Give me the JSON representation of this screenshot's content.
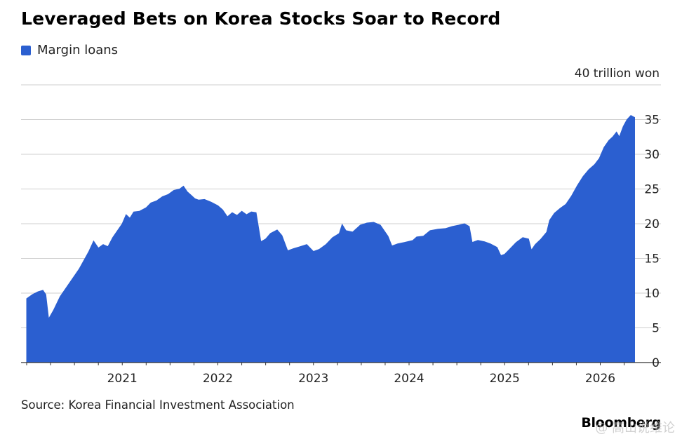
{
  "header": {
    "title": "Leveraged Bets on Korea Stocks Soar to Record",
    "legend_label": "Margin loans",
    "unit_label": "40 trillion won"
  },
  "footer": {
    "source": "Source: Korea Financial Investment Association",
    "brand": "Bloomberg",
    "watermark": "@ 高山说维论"
  },
  "colors": {
    "series": "#2b5fd0",
    "grid": "#cfcfcf",
    "axis": "#333333"
  },
  "chart_data": {
    "type": "area",
    "title": "Leveraged Bets on Korea Stocks Soar to Record",
    "xlabel": "",
    "ylabel": "40 trillion won",
    "ylim": [
      0,
      40
    ],
    "xlim": [
      2020.0,
      2026.4
    ],
    "yticks": [
      0,
      5,
      10,
      15,
      20,
      25,
      30,
      35
    ],
    "xticks": [
      {
        "value": 2021,
        "label": "2021"
      },
      {
        "value": 2022,
        "label": "2022"
      },
      {
        "value": 2023,
        "label": "2023"
      },
      {
        "value": 2024,
        "label": "2024"
      },
      {
        "value": 2025,
        "label": "2025"
      },
      {
        "value": 2026,
        "label": "2026"
      }
    ],
    "grid": true,
    "legend_position": "top-left",
    "series": [
      {
        "name": "Margin loans",
        "points": [
          [
            2020.0,
            9.2
          ],
          [
            2020.06,
            9.8
          ],
          [
            2020.12,
            10.2
          ],
          [
            2020.17,
            10.4
          ],
          [
            2020.2,
            9.8
          ],
          [
            2020.23,
            6.3
          ],
          [
            2020.28,
            7.5
          ],
          [
            2020.35,
            9.5
          ],
          [
            2020.45,
            11.5
          ],
          [
            2020.55,
            13.5
          ],
          [
            2020.65,
            16.0
          ],
          [
            2020.7,
            17.5
          ],
          [
            2020.75,
            16.5
          ],
          [
            2020.8,
            17.0
          ],
          [
            2020.85,
            16.7
          ],
          [
            2020.9,
            18.0
          ],
          [
            2020.95,
            19.0
          ],
          [
            2021.0,
            20.0
          ],
          [
            2021.04,
            21.3
          ],
          [
            2021.08,
            20.8
          ],
          [
            2021.12,
            21.7
          ],
          [
            2021.18,
            21.8
          ],
          [
            2021.25,
            22.3
          ],
          [
            2021.3,
            23.0
          ],
          [
            2021.36,
            23.3
          ],
          [
            2021.42,
            23.9
          ],
          [
            2021.48,
            24.2
          ],
          [
            2021.54,
            24.8
          ],
          [
            2021.6,
            25.0
          ],
          [
            2021.64,
            25.4
          ],
          [
            2021.68,
            24.6
          ],
          [
            2021.72,
            24.1
          ],
          [
            2021.76,
            23.6
          ],
          [
            2021.8,
            23.4
          ],
          [
            2021.86,
            23.5
          ],
          [
            2021.93,
            23.1
          ],
          [
            2022.0,
            22.6
          ],
          [
            2022.05,
            22.0
          ],
          [
            2022.1,
            21.0
          ],
          [
            2022.15,
            21.6
          ],
          [
            2022.2,
            21.2
          ],
          [
            2022.25,
            21.8
          ],
          [
            2022.3,
            21.3
          ],
          [
            2022.35,
            21.7
          ],
          [
            2022.4,
            21.6
          ],
          [
            2022.45,
            17.4
          ],
          [
            2022.5,
            17.8
          ],
          [
            2022.55,
            18.6
          ],
          [
            2022.62,
            19.1
          ],
          [
            2022.67,
            18.3
          ],
          [
            2022.73,
            16.1
          ],
          [
            2022.79,
            16.4
          ],
          [
            2022.86,
            16.7
          ],
          [
            2022.93,
            17.0
          ],
          [
            2023.0,
            16.0
          ],
          [
            2023.06,
            16.3
          ],
          [
            2023.13,
            17.0
          ],
          [
            2023.2,
            18.0
          ],
          [
            2023.27,
            18.6
          ],
          [
            2023.3,
            19.9
          ],
          [
            2023.34,
            19.0
          ],
          [
            2023.41,
            18.8
          ],
          [
            2023.49,
            19.8
          ],
          [
            2023.56,
            20.1
          ],
          [
            2023.63,
            20.2
          ],
          [
            2023.7,
            19.8
          ],
          [
            2023.78,
            18.2
          ],
          [
            2023.82,
            16.8
          ],
          [
            2023.88,
            17.1
          ],
          [
            2023.95,
            17.3
          ],
          [
            2024.04,
            17.6
          ],
          [
            2024.08,
            18.1
          ],
          [
            2024.15,
            18.2
          ],
          [
            2024.22,
            19.0
          ],
          [
            2024.3,
            19.2
          ],
          [
            2024.38,
            19.3
          ],
          [
            2024.45,
            19.6
          ],
          [
            2024.52,
            19.8
          ],
          [
            2024.58,
            20.0
          ],
          [
            2024.63,
            19.6
          ],
          [
            2024.66,
            17.3
          ],
          [
            2024.72,
            17.6
          ],
          [
            2024.79,
            17.4
          ],
          [
            2024.85,
            17.1
          ],
          [
            2024.92,
            16.6
          ],
          [
            2024.96,
            15.4
          ],
          [
            2025.0,
            15.6
          ],
          [
            2025.05,
            16.3
          ],
          [
            2025.12,
            17.3
          ],
          [
            2025.19,
            18.0
          ],
          [
            2025.25,
            17.8
          ],
          [
            2025.28,
            16.2
          ],
          [
            2025.32,
            17.0
          ],
          [
            2025.38,
            17.8
          ],
          [
            2025.44,
            18.8
          ],
          [
            2025.47,
            20.5
          ],
          [
            2025.52,
            21.5
          ],
          [
            2025.58,
            22.2
          ],
          [
            2025.64,
            22.8
          ],
          [
            2025.7,
            24.0
          ],
          [
            2025.76,
            25.5
          ],
          [
            2025.82,
            26.8
          ],
          [
            2025.88,
            27.8
          ],
          [
            2025.94,
            28.5
          ],
          [
            2025.99,
            29.4
          ],
          [
            2026.04,
            31.0
          ],
          [
            2026.09,
            32.0
          ],
          [
            2026.13,
            32.5
          ],
          [
            2026.17,
            33.2
          ],
          [
            2026.2,
            32.5
          ],
          [
            2026.24,
            34.0
          ],
          [
            2026.28,
            35.0
          ],
          [
            2026.32,
            35.6
          ],
          [
            2026.36,
            35.3
          ]
        ]
      }
    ]
  }
}
